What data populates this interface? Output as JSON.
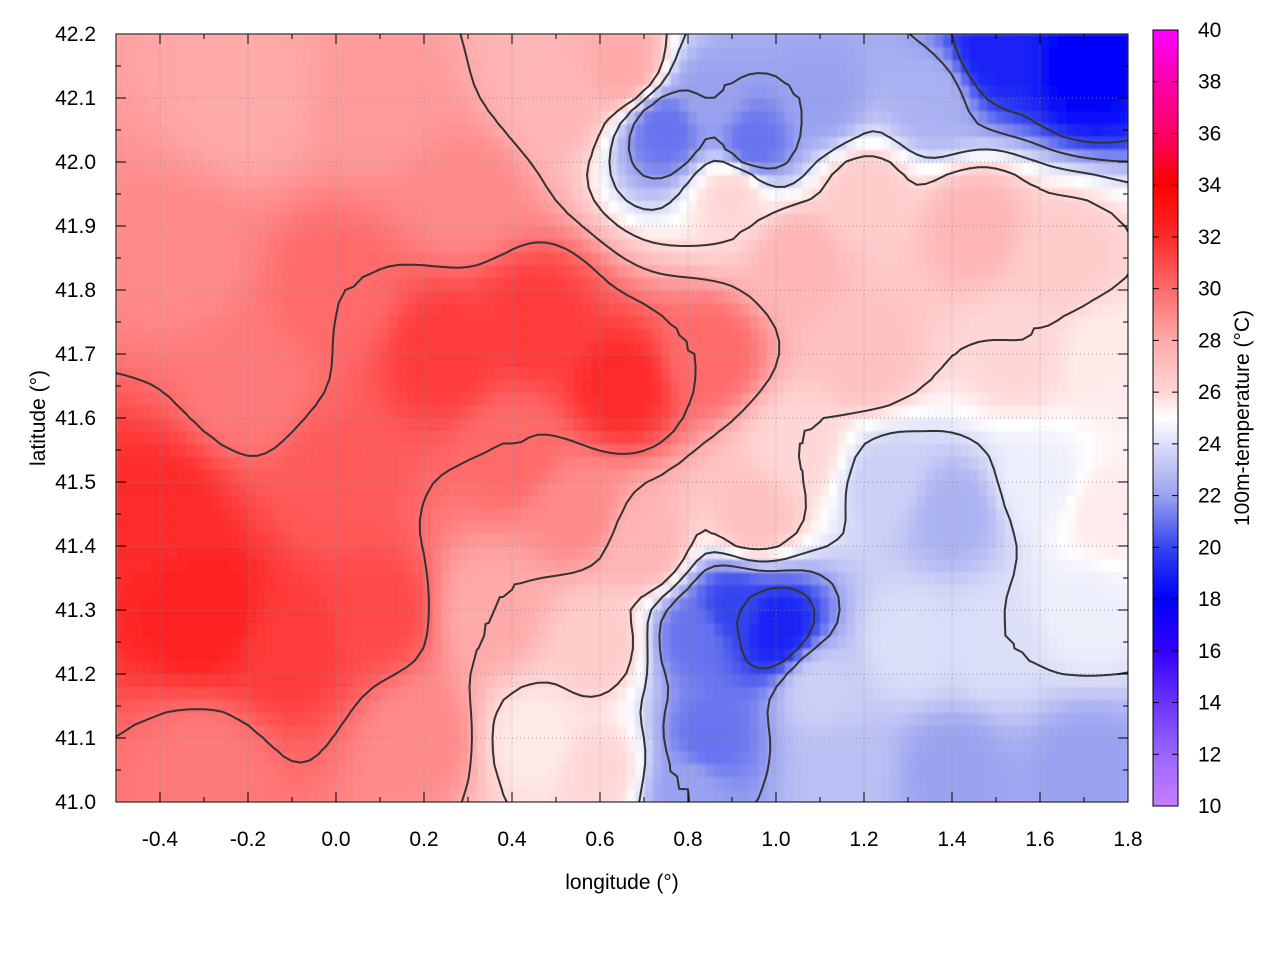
{
  "chart_data": {
    "type": "heatmap",
    "title": "",
    "xlabel": "longitude (°)",
    "ylabel": "latitude (°)",
    "colorbar_label": "100m-temperature (°C)",
    "xlim": [
      -0.5,
      1.8
    ],
    "ylim": [
      41.0,
      42.2
    ],
    "xticks": [
      "-0.4",
      "-0.2",
      "0.0",
      "0.2",
      "0.4",
      "0.6",
      "0.8",
      "1.0",
      "1.2",
      "1.4",
      "1.6",
      "1.8"
    ],
    "xtick_values": [
      -0.4,
      -0.2,
      0.0,
      0.2,
      0.4,
      0.6,
      0.8,
      1.0,
      1.2,
      1.4,
      1.6,
      1.8
    ],
    "yticks": [
      "41.0",
      "41.1",
      "41.2",
      "41.3",
      "41.4",
      "41.5",
      "41.6",
      "41.7",
      "41.8",
      "41.9",
      "42.0",
      "42.1",
      "42.2"
    ],
    "ytick_values": [
      41.0,
      41.1,
      41.2,
      41.3,
      41.4,
      41.5,
      41.6,
      41.7,
      41.8,
      41.9,
      42.0,
      42.1,
      42.2
    ],
    "color_range": [
      10,
      40
    ],
    "colorbar_ticks": [
      "10",
      "12",
      "14",
      "16",
      "18",
      "20",
      "22",
      "24",
      "26",
      "28",
      "30",
      "32",
      "34",
      "36",
      "38",
      "40"
    ],
    "colorbar_tick_values": [
      10,
      12,
      14,
      16,
      18,
      20,
      22,
      24,
      26,
      28,
      30,
      32,
      34,
      36,
      38,
      40
    ],
    "colormap": [
      {
        "v": 10,
        "color": "#c77dff"
      },
      {
        "v": 12,
        "color": "#9966ff"
      },
      {
        "v": 14,
        "color": "#6a33ff"
      },
      {
        "v": 16,
        "color": "#3300ff"
      },
      {
        "v": 18,
        "color": "#0000ff"
      },
      {
        "v": 20,
        "color": "#3344ee"
      },
      {
        "v": 22,
        "color": "#9aa2f0"
      },
      {
        "v": 24,
        "color": "#dcdff8"
      },
      {
        "v": 25,
        "color": "#ffffff"
      },
      {
        "v": 26,
        "color": "#ffd6d6"
      },
      {
        "v": 28,
        "color": "#ffaaaa"
      },
      {
        "v": 30,
        "color": "#ff6a6a"
      },
      {
        "v": 32,
        "color": "#ff2a2a"
      },
      {
        "v": 34,
        "color": "#ff0000"
      },
      {
        "v": 36,
        "color": "#ff0066"
      },
      {
        "v": 38,
        "color": "#ff00aa"
      },
      {
        "v": 40,
        "color": "#ff00ff"
      }
    ],
    "grid": true,
    "contours": true,
    "field_samples": [
      {
        "lon": -0.3,
        "lat": 41.3,
        "t": 32.5
      },
      {
        "lon": -0.4,
        "lat": 41.45,
        "t": 32
      },
      {
        "lon": -0.1,
        "lat": 41.25,
        "t": 31.5
      },
      {
        "lon": 0.1,
        "lat": 41.3,
        "t": 31
      },
      {
        "lon": 0.2,
        "lat": 41.1,
        "t": 29
      },
      {
        "lon": -0.3,
        "lat": 41.05,
        "t": 29.5
      },
      {
        "lon": 0.0,
        "lat": 41.5,
        "t": 30.5
      },
      {
        "lon": -0.2,
        "lat": 41.65,
        "t": 29.5
      },
      {
        "lon": -0.35,
        "lat": 41.85,
        "t": 29
      },
      {
        "lon": 0.0,
        "lat": 41.8,
        "t": 30
      },
      {
        "lon": 0.25,
        "lat": 41.7,
        "t": 31.5
      },
      {
        "lon": 0.45,
        "lat": 41.75,
        "t": 31.5
      },
      {
        "lon": 0.65,
        "lat": 41.65,
        "t": 32
      },
      {
        "lon": 0.85,
        "lat": 41.7,
        "t": 30
      },
      {
        "lon": 0.4,
        "lat": 41.55,
        "t": 30
      },
      {
        "lon": 0.55,
        "lat": 41.45,
        "t": 29
      },
      {
        "lon": 0.3,
        "lat": 41.95,
        "t": 29
      },
      {
        "lon": 0.1,
        "lat": 42.1,
        "t": 28.5
      },
      {
        "lon": -0.2,
        "lat": 42.1,
        "t": 28
      },
      {
        "lon": 0.5,
        "lat": 42.1,
        "t": 27.5
      },
      {
        "lon": 0.65,
        "lat": 42.15,
        "t": 28
      },
      {
        "lon": 0.85,
        "lat": 42.1,
        "t": 22
      },
      {
        "lon": 0.75,
        "lat": 42.05,
        "t": 21
      },
      {
        "lon": 0.95,
        "lat": 42.03,
        "t": 21
      },
      {
        "lon": 1.1,
        "lat": 42.1,
        "t": 22
      },
      {
        "lon": 1.5,
        "lat": 42.17,
        "t": 19
      },
      {
        "lon": 1.7,
        "lat": 42.15,
        "t": 18
      },
      {
        "lon": 1.35,
        "lat": 42.1,
        "t": 22.5
      },
      {
        "lon": 1.2,
        "lat": 41.95,
        "t": 26.5
      },
      {
        "lon": 1.45,
        "lat": 41.9,
        "t": 27.5
      },
      {
        "lon": 1.65,
        "lat": 41.85,
        "t": 26.5
      },
      {
        "lon": 1.05,
        "lat": 41.85,
        "t": 27.5
      },
      {
        "lon": 1.2,
        "lat": 41.7,
        "t": 27
      },
      {
        "lon": 1.55,
        "lat": 41.7,
        "t": 26
      },
      {
        "lon": 1.75,
        "lat": 41.7,
        "t": 25.5
      },
      {
        "lon": 1.25,
        "lat": 41.5,
        "t": 23.5
      },
      {
        "lon": 1.4,
        "lat": 41.45,
        "t": 22.5
      },
      {
        "lon": 1.6,
        "lat": 41.5,
        "t": 24.5
      },
      {
        "lon": 1.75,
        "lat": 41.45,
        "t": 25.5
      },
      {
        "lon": 1.05,
        "lat": 41.55,
        "t": 26
      },
      {
        "lon": 0.95,
        "lat": 41.45,
        "t": 27
      },
      {
        "lon": 0.9,
        "lat": 41.3,
        "t": 20
      },
      {
        "lon": 1.0,
        "lat": 41.27,
        "t": 19
      },
      {
        "lon": 0.82,
        "lat": 41.26,
        "t": 21
      },
      {
        "lon": 0.85,
        "lat": 41.1,
        "t": 21
      },
      {
        "lon": 0.8,
        "lat": 41.02,
        "t": 22
      },
      {
        "lon": 1.1,
        "lat": 41.18,
        "t": 23.5
      },
      {
        "lon": 1.3,
        "lat": 41.25,
        "t": 24
      },
      {
        "lon": 1.5,
        "lat": 41.25,
        "t": 24
      },
      {
        "lon": 1.4,
        "lat": 41.05,
        "t": 22
      },
      {
        "lon": 1.7,
        "lat": 41.05,
        "t": 22
      },
      {
        "lon": 1.15,
        "lat": 41.05,
        "t": 23
      },
      {
        "lon": 1.7,
        "lat": 41.3,
        "t": 24.5
      },
      {
        "lon": 0.6,
        "lat": 41.25,
        "t": 26.5
      },
      {
        "lon": 0.45,
        "lat": 41.1,
        "t": 25.5
      },
      {
        "lon": 0.6,
        "lat": 41.05,
        "t": 26
      },
      {
        "lon": 0.35,
        "lat": 41.3,
        "t": 28
      },
      {
        "lon": 0.7,
        "lat": 41.4,
        "t": 27.5
      },
      {
        "lon": 0.9,
        "lat": 41.95,
        "t": 26
      }
    ]
  }
}
